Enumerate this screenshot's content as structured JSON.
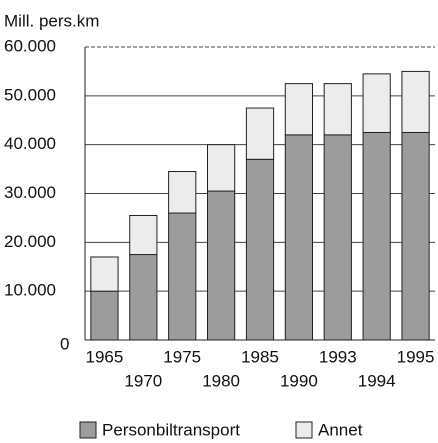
{
  "chart_data": {
    "type": "stacked_bar",
    "ylabel": "Mill. pers.km",
    "categories": [
      "1965",
      "1970",
      "1975",
      "1980",
      "1985",
      "1990",
      "1993",
      "1994",
      "1995"
    ],
    "series": [
      {
        "name": "Personbiltransport",
        "color": "#9c9c9c",
        "values": [
          10000,
          17500,
          26000,
          30500,
          37000,
          42000,
          42000,
          42500,
          42500
        ]
      },
      {
        "name": "Annet",
        "color": "#ececec",
        "values": [
          7000,
          8000,
          8500,
          9500,
          10500,
          10500,
          10500,
          12000,
          12500
        ]
      }
    ],
    "ylim": [
      0,
      60000
    ],
    "yticks": [
      0,
      {
        "value": 10000,
        "label": "10.000"
      },
      {
        "value": 20000,
        "label": "20.000"
      },
      {
        "value": 30000,
        "label": "30.000"
      },
      {
        "value": 40000,
        "label": "40.000"
      },
      {
        "value": 50000,
        "label": "50.000"
      },
      {
        "value": 60000,
        "label": "60.000"
      }
    ],
    "grid": true
  }
}
